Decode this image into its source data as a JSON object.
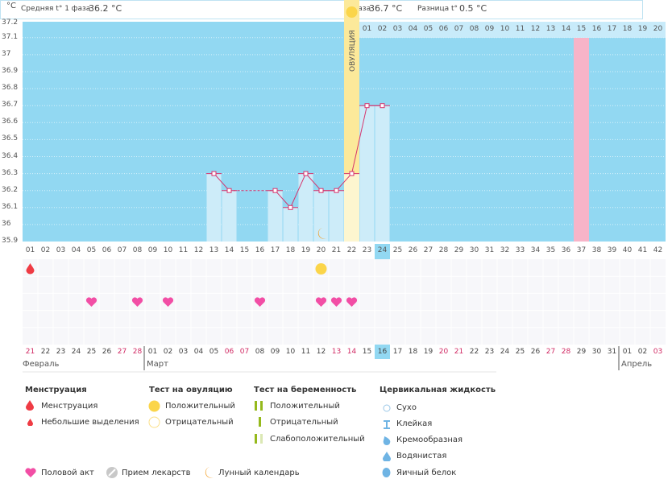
{
  "header": {
    "phase1_label": "Средняя t° 1 фаза",
    "phase1_value": "36.2 °C",
    "phase2_label": "2 фаза",
    "phase2_value": "36.7 °C",
    "diff_label": "Разница t°",
    "diff_value": "0.5 °C",
    "ovulation_label": "ОВУЛЯЦИЯ",
    "unit": "°C"
  },
  "chart_data": {
    "type": "line",
    "title": "",
    "ylabel": "°C",
    "ylim": [
      35.9,
      37.2
    ],
    "yticks": [
      "37.2",
      "37.1",
      "37",
      "36.9",
      "36.8",
      "36.7",
      "36.6",
      "36.5",
      "36.4",
      "36.3",
      "36.2",
      "36.1",
      "36",
      "35.9"
    ],
    "cycle_days": [
      "01",
      "02",
      "03",
      "04",
      "05",
      "06",
      "07",
      "08",
      "09",
      "10",
      "11",
      "12",
      "13",
      "14",
      "15",
      "16",
      "17",
      "18",
      "19",
      "20",
      "21",
      "22",
      "23",
      "24",
      "25",
      "26",
      "27",
      "28",
      "29",
      "30",
      "31",
      "32",
      "33",
      "34",
      "35",
      "36",
      "37",
      "38",
      "39",
      "40",
      "41",
      "42"
    ],
    "series": [
      {
        "name": "Базальная температура",
        "points": [
          [
            13,
            36.3
          ],
          [
            14,
            36.2
          ],
          [
            17,
            36.2
          ],
          [
            18,
            36.1
          ],
          [
            19,
            36.3
          ],
          [
            20,
            36.2
          ],
          [
            21,
            36.2
          ],
          [
            22,
            36.3
          ],
          [
            23,
            36.7
          ],
          [
            24,
            36.7
          ]
        ]
      }
    ],
    "interpolated": [
      [
        14,
        17
      ]
    ],
    "ovulation_day": 22,
    "current_day": 24,
    "expected_period_day": 37,
    "post_ovulation_days": [
      "01",
      "02",
      "03",
      "04",
      "05",
      "06",
      "07",
      "08",
      "09",
      "10",
      "11",
      "12",
      "13",
      "14",
      "15",
      "16",
      "17",
      "18",
      "19",
      "20"
    ],
    "highlight_post_day": "15",
    "moon_days": [
      20
    ],
    "menstruation_days": [
      1
    ],
    "ovulation_test_positive_days": [
      20
    ],
    "intercourse_days": [
      5,
      8,
      10,
      16,
      20,
      21,
      22
    ],
    "dates": [
      {
        "d": "21",
        "we": true
      },
      {
        "d": "22"
      },
      {
        "d": "23"
      },
      {
        "d": "24"
      },
      {
        "d": "25"
      },
      {
        "d": "26"
      },
      {
        "d": "27",
        "we": true
      },
      {
        "d": "28",
        "we": true
      },
      {
        "d": "01"
      },
      {
        "d": "02"
      },
      {
        "d": "03"
      },
      {
        "d": "04"
      },
      {
        "d": "05"
      },
      {
        "d": "06",
        "we": true
      },
      {
        "d": "07",
        "we": true
      },
      {
        "d": "08"
      },
      {
        "d": "09"
      },
      {
        "d": "10"
      },
      {
        "d": "11"
      },
      {
        "d": "12"
      },
      {
        "d": "13",
        "we": true
      },
      {
        "d": "14",
        "we": true
      },
      {
        "d": "15"
      },
      {
        "d": "16"
      },
      {
        "d": "17"
      },
      {
        "d": "18"
      },
      {
        "d": "19"
      },
      {
        "d": "20",
        "we": true
      },
      {
        "d": "21",
        "we": true
      },
      {
        "d": "22"
      },
      {
        "d": "23"
      },
      {
        "d": "24"
      },
      {
        "d": "25"
      },
      {
        "d": "26"
      },
      {
        "d": "27",
        "we": true
      },
      {
        "d": "28",
        "we": true
      },
      {
        "d": "29"
      },
      {
        "d": "30"
      },
      {
        "d": "31"
      },
      {
        "d": "01"
      },
      {
        "d": "02"
      },
      {
        "d": "03",
        "we": true
      }
    ],
    "months": [
      {
        "name": "Февраль",
        "start_col": 1
      },
      {
        "name": "Март",
        "start_col": 9
      },
      {
        "name": "Апрель",
        "start_col": 40
      }
    ]
  },
  "legend": {
    "menstruation": {
      "title": "Менструация",
      "items": [
        "Менструация",
        "Небольшие выделения"
      ]
    },
    "ovulation_test": {
      "title": "Тест на овуляцию",
      "items": [
        "Положительный",
        "Отрицательный"
      ]
    },
    "pregnancy_test": {
      "title": "Тест на беременность",
      "items": [
        "Положительный",
        "Отрицательный",
        "Слабоположительный"
      ]
    },
    "cervical": {
      "title": "Цервикальная жидкость",
      "items": [
        "Сухо",
        "Клейкая",
        "Кремообразная",
        "Водянистая",
        "Яичный белок"
      ]
    },
    "other": [
      "Половой акт",
      "Прием лекарств",
      "Лунный календарь"
    ]
  },
  "colors": {
    "plot_bg": "#92d8f2",
    "bar": "#cdecf9",
    "line": "#d6336c",
    "ovulation": "#fce99a",
    "ovulation_light": "#fdf6cf",
    "expected": "#f7b4c8",
    "heart": "#f24ea5",
    "drop": "#ef3b44",
    "sun": "#fbd54a",
    "moon": "#f29a1c"
  }
}
